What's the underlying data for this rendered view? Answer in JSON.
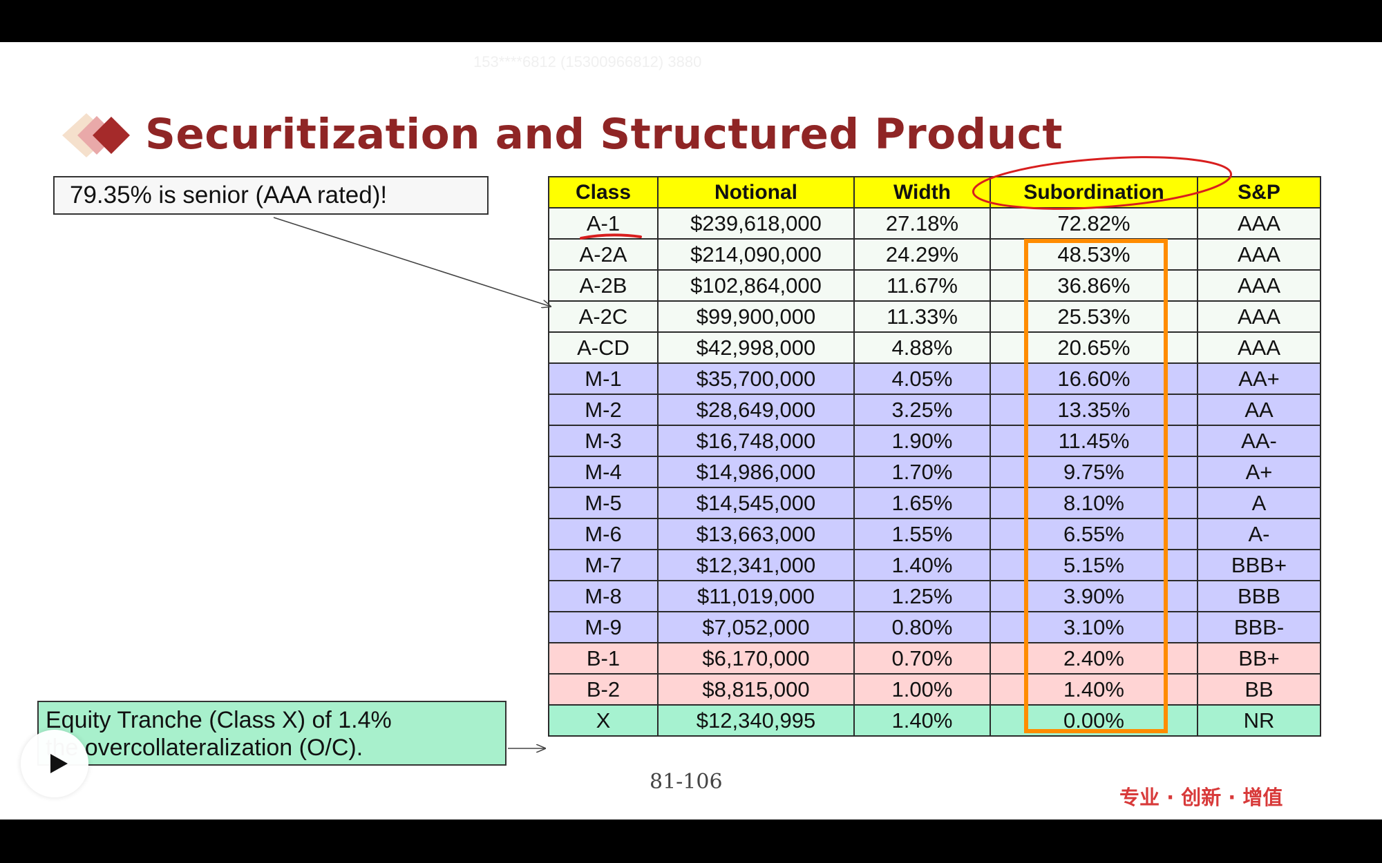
{
  "watermark": "153****6812 (15300966812) 3880",
  "title": "Securitization and Structured Product",
  "callouts": {
    "senior": "79.35% is senior (AAA rated)!",
    "equity_line1": "Equity Tranche (Class X) of 1.4%",
    "equity_line2": "the overcollateralization (O/C)."
  },
  "table": {
    "headers": [
      "Class",
      "Notional",
      "Width",
      "Subordination",
      "S&P"
    ],
    "rows": [
      {
        "class": "A-1",
        "notional": "$239,618,000",
        "width": "27.18%",
        "subordination": "72.82%",
        "sp": "AAA",
        "group": "senior"
      },
      {
        "class": "A-2A",
        "notional": "$214,090,000",
        "width": "24.29%",
        "subordination": "48.53%",
        "sp": "AAA",
        "group": "senior"
      },
      {
        "class": "A-2B",
        "notional": "$102,864,000",
        "width": "11.67%",
        "subordination": "36.86%",
        "sp": "AAA",
        "group": "senior"
      },
      {
        "class": "A-2C",
        "notional": "$99,900,000",
        "width": "11.33%",
        "subordination": "25.53%",
        "sp": "AAA",
        "group": "senior"
      },
      {
        "class": "A-CD",
        "notional": "$42,998,000",
        "width": "4.88%",
        "subordination": "20.65%",
        "sp": "AAA",
        "group": "senior"
      },
      {
        "class": "M-1",
        "notional": "$35,700,000",
        "width": "4.05%",
        "subordination": "16.60%",
        "sp": "AA+",
        "group": "mezz"
      },
      {
        "class": "M-2",
        "notional": "$28,649,000",
        "width": "3.25%",
        "subordination": "13.35%",
        "sp": "AA",
        "group": "mezz"
      },
      {
        "class": "M-3",
        "notional": "$16,748,000",
        "width": "1.90%",
        "subordination": "11.45%",
        "sp": "AA-",
        "group": "mezz"
      },
      {
        "class": "M-4",
        "notional": "$14,986,000",
        "width": "1.70%",
        "subordination": "9.75%",
        "sp": "A+",
        "group": "mezz"
      },
      {
        "class": "M-5",
        "notional": "$14,545,000",
        "width": "1.65%",
        "subordination": "8.10%",
        "sp": "A",
        "group": "mezz"
      },
      {
        "class": "M-6",
        "notional": "$13,663,000",
        "width": "1.55%",
        "subordination": "6.55%",
        "sp": "A-",
        "group": "mezz"
      },
      {
        "class": "M-7",
        "notional": "$12,341,000",
        "width": "1.40%",
        "subordination": "5.15%",
        "sp": "BBB+",
        "group": "mezz"
      },
      {
        "class": "M-8",
        "notional": "$11,019,000",
        "width": "1.25%",
        "subordination": "3.90%",
        "sp": "BBB",
        "group": "mezz"
      },
      {
        "class": "M-9",
        "notional": "$7,052,000",
        "width": "0.80%",
        "subordination": "3.10%",
        "sp": "BBB-",
        "group": "mezz"
      },
      {
        "class": "B-1",
        "notional": "$6,170,000",
        "width": "0.70%",
        "subordination": "2.40%",
        "sp": "BB+",
        "group": "sub"
      },
      {
        "class": "B-2",
        "notional": "$8,815,000",
        "width": "1.00%",
        "subordination": "1.40%",
        "sp": "BB",
        "group": "sub"
      },
      {
        "class": "X",
        "notional": "$12,340,995",
        "width": "1.40%",
        "subordination": "0.00%",
        "sp": "NR",
        "group": "equity"
      }
    ]
  },
  "page_number": "81-106",
  "slogan": "专业 · 创新 · 增值",
  "colors": {
    "title": "#8f2525",
    "header_fill": "#ffff00",
    "senior_fill": "#f4faf4",
    "mezz_fill": "#ccccff",
    "sub_fill": "#ffd4d4",
    "equity_fill": "#a6f2d0",
    "highlight_box": "#ff8c00",
    "annotation_ink": "#d81e1e",
    "slogan": "#d83a3a"
  },
  "icons": {
    "logo": "diamond-logo-icon",
    "play": "play-icon"
  }
}
